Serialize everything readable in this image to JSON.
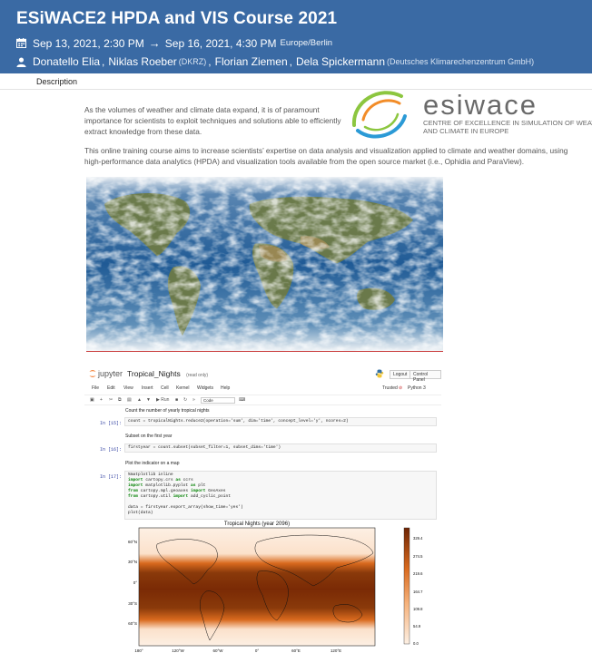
{
  "header": {
    "title": "ESiWACE2 HPDA and VIS Course 2021",
    "date_start": "Sep 13, 2021, 2:30 PM",
    "date_arrow": "→",
    "date_end": "Sep 16, 2021, 4:30 PM",
    "timezone": "Europe/Berlin",
    "speakers": [
      {
        "name": "Donatello Elia",
        "affiliation": ""
      },
      {
        "name": "Niklas Roeber",
        "affiliation": "(DKRZ)"
      },
      {
        "name": "Florian Ziemen",
        "affiliation": ""
      },
      {
        "name": "Dela Spickermann",
        "affiliation": "(Deutsches Klimarechenzentrum GmbH)"
      }
    ],
    "separator": ","
  },
  "tabs": {
    "description": "Description"
  },
  "description": {
    "p1": "As the volumes of weather and climate data expand, it is of paramount importance for scientists to exploit techniques and solutions able to efficiently extract knowledge from these data.",
    "p2": "This online training course aims to increase scientists’ expertise on data analysis and visualization applied to climate and weather domains, using high-performance data analytics (HPDA) and visualization tools available from the open source market (i.e., Ophidia and ParaView)."
  },
  "logo": {
    "name": "esiwace",
    "line1": "CENTRE OF EXCELLENCE IN SIMULATION OF WEATHER",
    "line2": "AND CLIMATE IN EUROPE",
    "colors": {
      "green": "#8cc63f",
      "blue": "#2b9ad6",
      "orange": "#f28c28",
      "text": "#6a6a6a"
    }
  },
  "jupyter": {
    "brand": "jupyter",
    "notebook_name": "Tropical_Nights",
    "read_only": "(read only)",
    "logout": "Logout",
    "control_panel": "Control Panel",
    "trusted": "Trusted",
    "kernel": "Python 3",
    "menu": [
      "File",
      "Edit",
      "View",
      "Insert",
      "Cell",
      "Kernel",
      "Widgets",
      "Help"
    ],
    "toolbar_run": "Run",
    "cell_type": "Code",
    "cells": [
      {
        "type": "md",
        "text": "Count the number of yearly tropical nights"
      },
      {
        "type": "code",
        "prompt": "In [15]:",
        "text": "count = tropicalNights.reduce2(operation='sum', dim='time', concept_level='y', ncores=2)"
      },
      {
        "type": "md",
        "text": "Subset on the first year"
      },
      {
        "type": "code",
        "prompt": "In [16]:",
        "text": "firstyear = count.subset(subset_filter=1, subset_dims='time')"
      },
      {
        "type": "md",
        "text": "Plot the indicator on a map"
      },
      {
        "type": "code",
        "prompt": "In [17]:",
        "lines": [
          "%matplotlib inline",
          "import cartopy.crs as ccrs",
          "import matplotlib.pyplot as plt",
          "from cartopy.mpl.geoaxes import GeoAxes",
          "from cartopy.util import add_cyclic_point",
          "",
          "data = firstyear.export_array(show_time='yes')",
          "plot(data)"
        ]
      }
    ]
  },
  "map_plot": {
    "title": "Tropical Nights (year 2096)",
    "lat_ticks": [
      "60°N",
      "30°N",
      "0°",
      "30°S",
      "60°S"
    ],
    "lon_ticks": [
      "180°",
      "120°W",
      "60°W",
      "0°",
      "60°E",
      "120°E"
    ],
    "colorbar_ticks": [
      "329.4",
      "274.5",
      "219.6",
      "164.7",
      "109.8",
      "54.9",
      "0.0"
    ],
    "colors": {
      "high": "#7a2a05",
      "mid": "#d96a1e",
      "low": "#fdf0e4"
    }
  }
}
